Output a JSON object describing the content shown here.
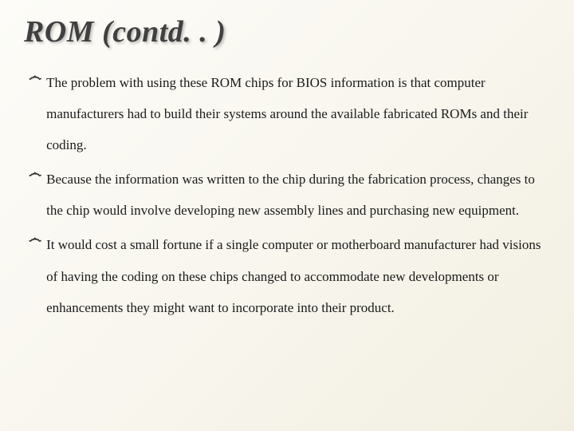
{
  "slide": {
    "title": "ROM  (contd. . )",
    "bullets": [
      "The problem with using these ROM chips for BIOS information is that computer manufacturers had to build their systems around the available fabricated ROMs and their coding.",
      " Because the information was written to the chip during the fabrication process, changes to the chip would involve developing new assembly lines and purchasing new equipment.",
      "It would cost a small fortune if a single computer or motherboard manufacturer had visions of having the coding on these chips changed to accommodate new developments or enhancements they might want to incorporate into their product."
    ],
    "bullet_glyph": "෴",
    "title_color": "#404040",
    "text_color": "#1a1a1a",
    "background_gradient": [
      "#fdfcf8",
      "#f2efe2"
    ]
  }
}
